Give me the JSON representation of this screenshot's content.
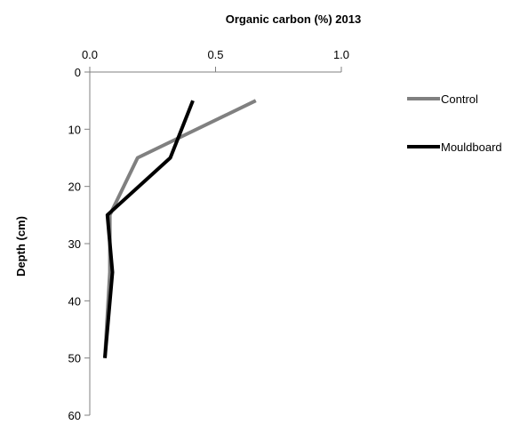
{
  "chart_data": {
    "type": "line",
    "title": "Organic carbon (%) 2013",
    "xlabel": "Organic carbon (%) 2013",
    "ylabel": "Depth (cm)",
    "xlim": [
      0.0,
      1.0
    ],
    "ylim": [
      0,
      60
    ],
    "y_inverted": true,
    "x_axis_position": "top",
    "x_ticks": [
      0.0,
      0.5,
      1.0
    ],
    "x_tick_labels": [
      "0.0",
      "0.5",
      "1.0"
    ],
    "y_ticks": [
      0,
      10,
      20,
      30,
      40,
      50,
      60
    ],
    "y_tick_labels": [
      "0",
      "10",
      "20",
      "30",
      "40",
      "50",
      "60"
    ],
    "grid": false,
    "legend_position": "right",
    "series": [
      {
        "name": "Control",
        "color": "#808080",
        "points": [
          {
            "x": 0.66,
            "y": 5
          },
          {
            "x": 0.19,
            "y": 15
          },
          {
            "x": 0.08,
            "y": 25
          },
          {
            "x": 0.08,
            "y": 35
          },
          {
            "x": 0.06,
            "y": 50
          }
        ]
      },
      {
        "name": "Mouldboard",
        "color": "#000000",
        "points": [
          {
            "x": 0.41,
            "y": 5
          },
          {
            "x": 0.32,
            "y": 15
          },
          {
            "x": 0.07,
            "y": 25
          },
          {
            "x": 0.09,
            "y": 35
          },
          {
            "x": 0.06,
            "y": 50
          }
        ]
      }
    ]
  }
}
